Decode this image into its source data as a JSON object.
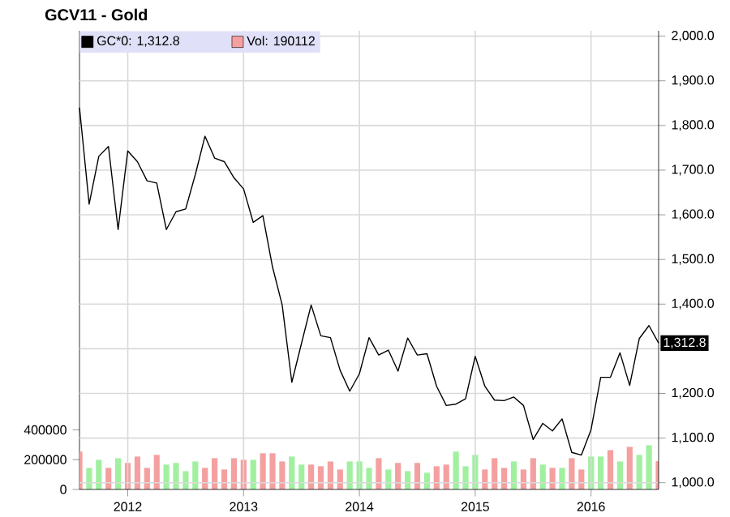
{
  "chart_data": {
    "type": "line",
    "title": "GCV11 - Gold",
    "x": [
      "2011-08",
      "2011-09",
      "2011-10",
      "2011-11",
      "2011-12",
      "2012-01",
      "2012-02",
      "2012-03",
      "2012-04",
      "2012-05",
      "2012-06",
      "2012-07",
      "2012-08",
      "2012-09",
      "2012-10",
      "2012-11",
      "2012-12",
      "2013-01",
      "2013-02",
      "2013-03",
      "2013-04",
      "2013-05",
      "2013-06",
      "2013-07",
      "2013-08",
      "2013-09",
      "2013-10",
      "2013-11",
      "2013-12",
      "2014-01",
      "2014-02",
      "2014-03",
      "2014-04",
      "2014-05",
      "2014-06",
      "2014-07",
      "2014-08",
      "2014-09",
      "2014-10",
      "2014-11",
      "2014-12",
      "2015-01",
      "2015-02",
      "2015-03",
      "2015-04",
      "2015-05",
      "2015-06",
      "2015-07",
      "2015-08",
      "2015-09",
      "2015-10",
      "2015-11",
      "2015-12",
      "2016-01",
      "2016-02",
      "2016-03",
      "2016-04",
      "2016-05",
      "2016-06",
      "2016-07",
      "2016-08"
    ],
    "series": [
      {
        "name": "GC*0: 1,312.8",
        "color": "#000000",
        "values": [
          1840,
          1624,
          1731,
          1753,
          1567,
          1743,
          1719,
          1676,
          1671,
          1567,
          1607,
          1613,
          1690,
          1776,
          1727,
          1719,
          1683,
          1658,
          1583,
          1598,
          1483,
          1398,
          1225,
          1312,
          1398,
          1329,
          1325,
          1252,
          1205,
          1244,
          1325,
          1286,
          1297,
          1250,
          1324,
          1286,
          1289,
          1216,
          1173,
          1176,
          1188,
          1283,
          1216,
          1185,
          1184,
          1192,
          1173,
          1097,
          1133,
          1116,
          1143,
          1068,
          1062,
          1119,
          1236,
          1236,
          1291,
          1218,
          1323,
          1352,
          1312.8
        ]
      },
      {
        "name": "Vol: 190112",
        "type": "bar",
        "axis": "y2",
        "color": "#f4a0a0",
        "colors": [
          "#f4a0a0",
          "#a0f0a0",
          "#a0f0a0",
          "#f4a0a0",
          "#a0f0a0",
          "#f4a0a0",
          "#f4a0a0",
          "#f4a0a0",
          "#f4a0a0",
          "#a0f0a0",
          "#a0f0a0",
          "#a0f0a0",
          "#a0f0a0",
          "#f4a0a0",
          "#f4a0a0",
          "#f4a0a0",
          "#f4a0a0",
          "#f4a0a0",
          "#a0f0a0",
          "#f4a0a0",
          "#f4a0a0",
          "#f4a0a0",
          "#a0f0a0",
          "#a0f0a0",
          "#f4a0a0",
          "#f4a0a0",
          "#f4a0a0",
          "#f4a0a0",
          "#a0f0a0",
          "#a0f0a0",
          "#a0f0a0",
          "#f4a0a0",
          "#a0f0a0",
          "#f4a0a0",
          "#a0f0a0",
          "#f4a0a0",
          "#a0f0a0",
          "#f4a0a0",
          "#f4a0a0",
          "#a0f0a0",
          "#a0f0a0",
          "#a0f0a0",
          "#f4a0a0",
          "#f4a0a0",
          "#f4a0a0",
          "#a0f0a0",
          "#f4a0a0",
          "#f4a0a0",
          "#a0f0a0",
          "#f4a0a0",
          "#a0f0a0",
          "#f4a0a0",
          "#f4a0a0",
          "#a0f0a0",
          "#a0f0a0",
          "#f4a0a0",
          "#a0f0a0",
          "#f4a0a0",
          "#a0f0a0",
          "#a0f0a0",
          "#f4a0a0"
        ],
        "values": [
          254000,
          145000,
          199000,
          145000,
          210000,
          178000,
          221000,
          145000,
          232000,
          167000,
          178000,
          123000,
          188000,
          145000,
          210000,
          134000,
          210000,
          199000,
          199000,
          243000,
          243000,
          188000,
          221000,
          167000,
          167000,
          156000,
          188000,
          134000,
          188000,
          188000,
          145000,
          210000,
          134000,
          178000,
          123000,
          178000,
          112000,
          156000,
          167000,
          254000,
          156000,
          232000,
          134000,
          210000,
          145000,
          188000,
          134000,
          210000,
          167000,
          145000,
          145000,
          210000,
          134000,
          221000,
          221000,
          264000,
          188000,
          286000,
          232000,
          297000,
          190112
        ]
      }
    ],
    "xlim": [
      "2011-08",
      "2016-08"
    ],
    "xticks": [
      {
        "value": "2012-01",
        "label": "2012"
      },
      {
        "value": "2013-01",
        "label": "2013"
      },
      {
        "value": "2014-01",
        "label": "2014"
      },
      {
        "value": "2015-01",
        "label": "2015"
      },
      {
        "value": "2016-01",
        "label": "2016"
      }
    ],
    "ylim": [
      985,
      2012
    ],
    "yticks": [
      {
        "value": 1000,
        "label": "1,000.0"
      },
      {
        "value": 1100,
        "label": "1,100.0"
      },
      {
        "value": 1200,
        "label": "1,200.0"
      },
      {
        "value": 1300,
        "label": null
      },
      {
        "value": 1400,
        "label": "1,400.0"
      },
      {
        "value": 1500,
        "label": "1,500.0"
      },
      {
        "value": 1600,
        "label": "1,600.0"
      },
      {
        "value": 1700,
        "label": "1,700.0"
      },
      {
        "value": 1800,
        "label": "1,800.0"
      },
      {
        "value": 1900,
        "label": "1,900.0"
      },
      {
        "value": 2000,
        "label": "2,000.0"
      }
    ],
    "y2lim": [
      0,
      3080000
    ],
    "y2ticks": [
      0,
      200000,
      400000
    ],
    "annotations": [
      {
        "text": "1,312.8",
        "x": "2016-08",
        "y": 1312.8
      }
    ],
    "grid": true,
    "legend": "top left",
    "marker": "none",
    "line_style": "solid"
  }
}
